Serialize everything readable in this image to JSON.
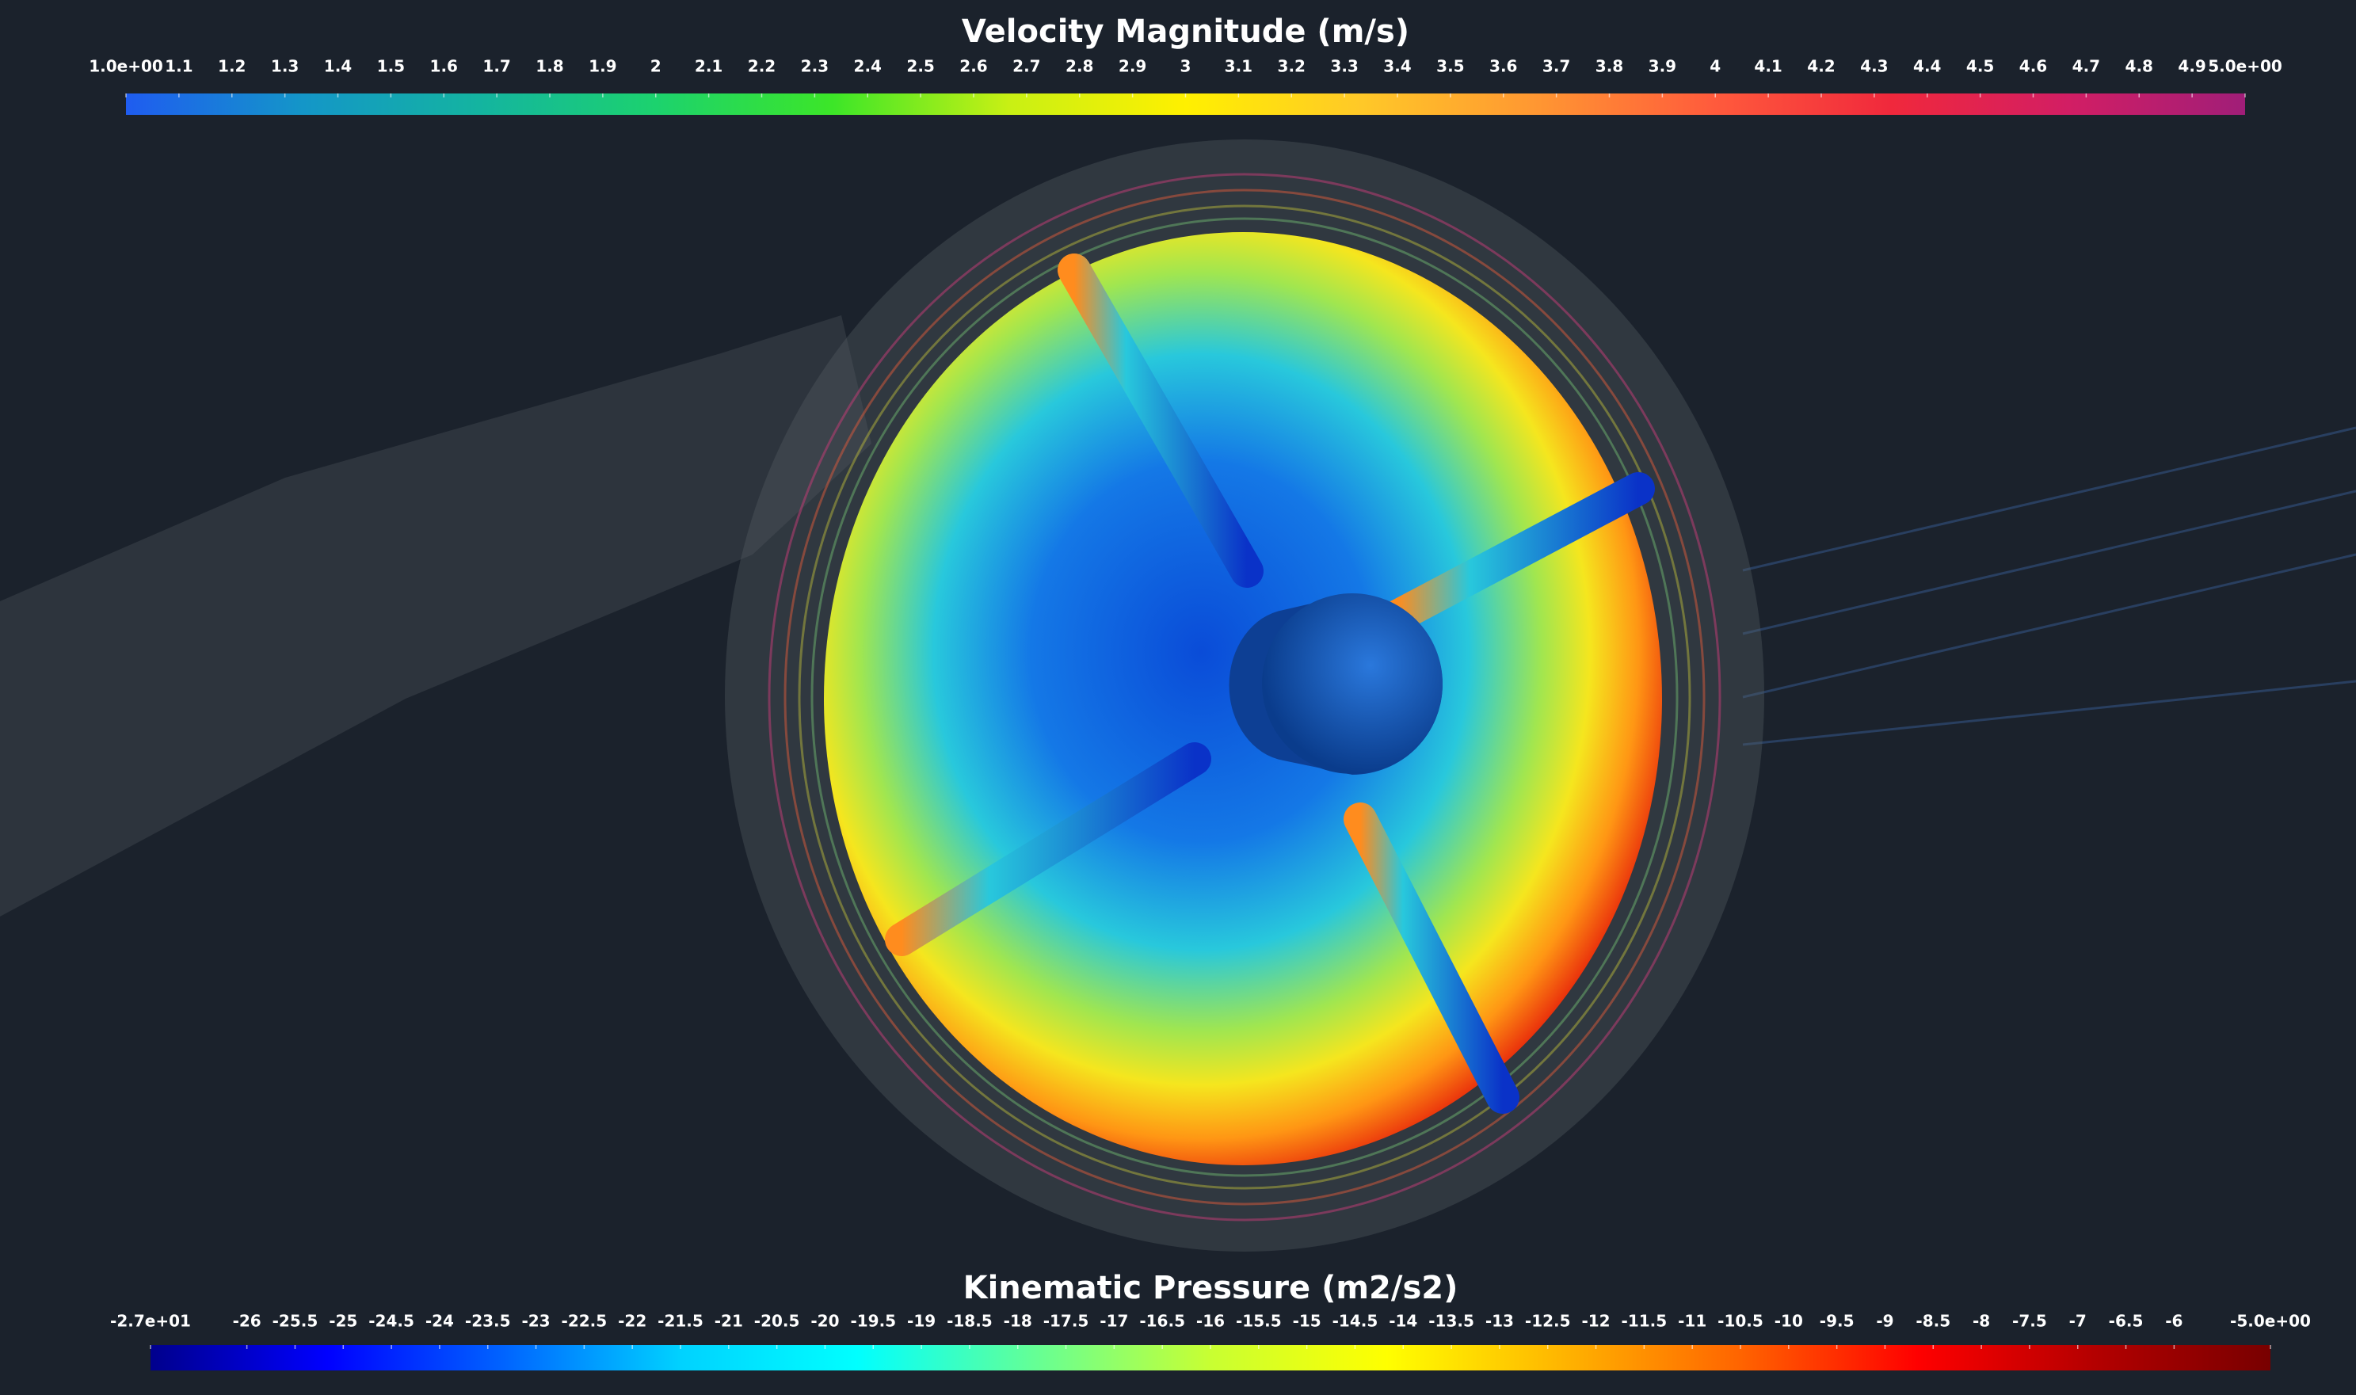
{
  "colorbars": [
    {
      "title": "Velocity Magnitude (m/s)",
      "range": [
        1,
        5
      ],
      "colormap": [
        "#1f5cf0",
        "#1496c8",
        "#14b4a0",
        "#1cd26e",
        "#3ce628",
        "#c8f014",
        "#fff000",
        "#ffc828",
        "#ff9632",
        "#ff5a3c",
        "#f0283c",
        "#d21e64",
        "#a01e78"
      ],
      "ticks": [
        {
          "value": 1,
          "label": "1.0e+00"
        },
        1.1,
        1.2,
        1.3,
        1.4,
        1.5,
        1.6,
        1.7,
        1.8,
        1.9,
        2,
        2.1,
        2.2,
        2.3,
        2.4,
        2.5,
        2.6,
        2.7,
        2.8,
        2.9,
        3,
        3.1,
        3.2,
        3.3,
        3.4,
        3.5,
        3.6,
        3.7,
        3.8,
        3.9,
        4,
        4.1,
        4.2,
        4.3,
        4.4,
        4.5,
        4.6,
        4.7,
        4.8,
        4.9,
        {
          "value": 5,
          "label": "5.0e+00"
        }
      ]
    },
    {
      "title": "Kinematic Pressure (m2/s2)",
      "range": [
        -27,
        -5
      ],
      "colormap": [
        "#00008c",
        "#0000ff",
        "#0064ff",
        "#00d2ff",
        "#00ffff",
        "#64ff96",
        "#c8ff32",
        "#ffff00",
        "#ffb400",
        "#ff6400",
        "#ff0000",
        "#b40000",
        "#780000"
      ],
      "ticks": [
        {
          "value": -27,
          "label": "-2.7e+01"
        },
        -26,
        -25.5,
        -25,
        -24.5,
        -24,
        -23.5,
        -23,
        -22.5,
        -22,
        -21.5,
        -21,
        -20.5,
        -20,
        -19.5,
        -19,
        -18.5,
        -18,
        -17.5,
        -17,
        -16.5,
        -16,
        -15.5,
        -15,
        -14.5,
        -14,
        -13.5,
        -13,
        -12.5,
        -12,
        -11.5,
        -11,
        -10.5,
        -10,
        -9.5,
        -9,
        -8.5,
        -8,
        -7.5,
        -7,
        -6.5,
        -6,
        {
          "value": -5,
          "label": "-5.0e+00"
        }
      ]
    }
  ]
}
